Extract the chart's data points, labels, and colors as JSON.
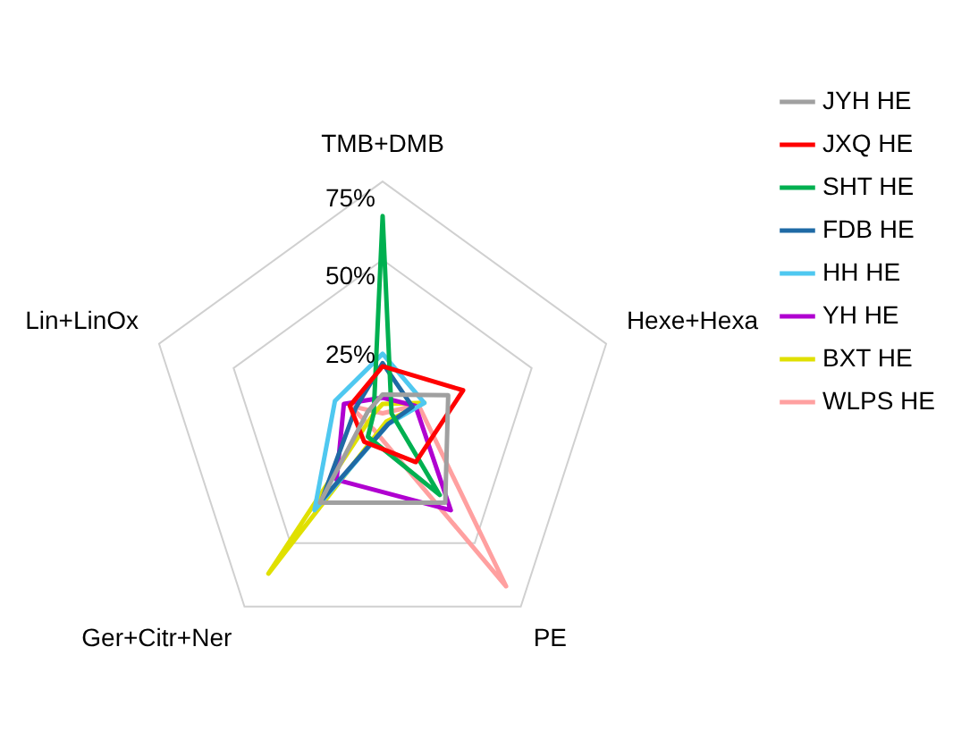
{
  "chart_data": {
    "type": "radar",
    "categories": [
      "TMB+DMB",
      "Hexe+Hexa",
      "PE",
      "Ger+Citr+Ner",
      "Lin+LinOx"
    ],
    "series": [
      {
        "name": "JYH HE",
        "color": "#a0a0a0",
        "values": [
          7,
          22,
          34,
          34,
          5
        ]
      },
      {
        "name": "JXQ HE",
        "color": "#ff0000",
        "values": [
          16,
          27,
          18,
          10,
          11
        ]
      },
      {
        "name": "SHT HE",
        "color": "#00b050",
        "values": [
          64,
          3,
          31,
          8,
          3
        ]
      },
      {
        "name": "FDB HE",
        "color": "#1f6aa5",
        "values": [
          17,
          10,
          3,
          33,
          9
        ]
      },
      {
        "name": "HH HE",
        "color": "#4fc8f0",
        "values": [
          20,
          14,
          3,
          37,
          16
        ]
      },
      {
        "name": "YH HE",
        "color": "#b000d0",
        "values": [
          6,
          11,
          37,
          25,
          13
        ]
      },
      {
        "name": "BXT HE",
        "color": "#e0e000",
        "values": [
          4,
          14,
          2,
          62,
          3
        ]
      },
      {
        "name": "WLPS HE",
        "color": "#ffa0a0",
        "values": [
          1,
          12,
          67,
          5,
          11
        ]
      }
    ],
    "ylim": [
      0,
      75
    ],
    "yticks": [
      {
        "value": 25,
        "label": "25%"
      },
      {
        "value": 50,
        "label": "50%"
      },
      {
        "value": 75,
        "label": "75%"
      }
    ],
    "grid": true,
    "legend": "top right",
    "marker": "none"
  }
}
